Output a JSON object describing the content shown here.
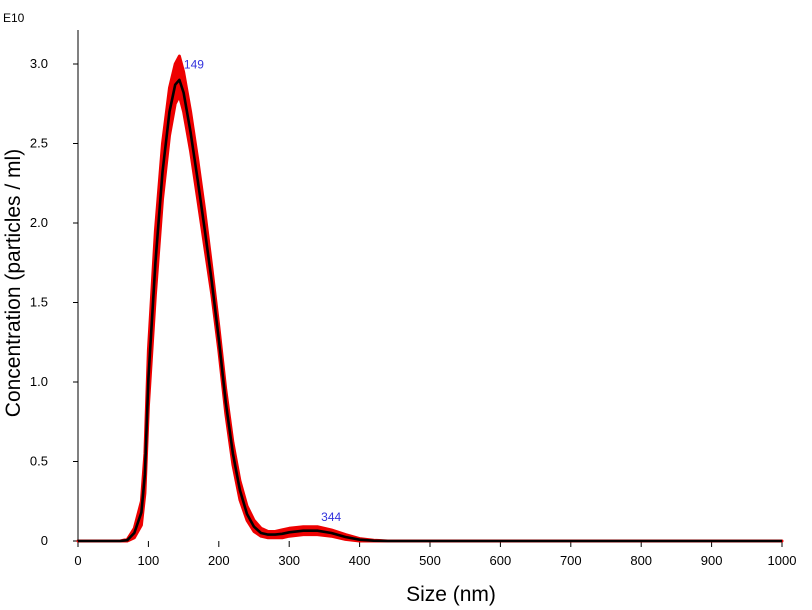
{
  "chart_data": {
    "type": "line",
    "title": "",
    "xlabel": "Size (nm)",
    "ylabel": "Concentration (particles / ml)",
    "y_exponent_label": "E10",
    "xlim": [
      0,
      1000
    ],
    "ylim": [
      0,
      3.0
    ],
    "x_ticks": [
      0,
      100,
      200,
      300,
      400,
      500,
      600,
      700,
      800,
      900,
      1000
    ],
    "x_tick_labels": [
      "0",
      "100",
      "200",
      "300",
      "400",
      "500",
      "600",
      "700",
      "800",
      "900",
      "1000"
    ],
    "y_ticks": [
      0,
      0.5,
      1.0,
      1.5,
      2.0,
      2.5,
      3.0
    ],
    "y_tick_labels": [
      "0",
      "0.5",
      "1.0",
      "1.5",
      "2.0",
      "2.5",
      "3.0"
    ],
    "grid": false,
    "legend": "none",
    "series": [
      {
        "color": "#ee0000",
        "style": "error-band",
        "x": [
          0,
          60,
          70,
          80,
          90,
          95,
          100,
          110,
          120,
          130,
          138,
          144,
          150,
          160,
          170,
          180,
          190,
          200,
          210,
          220,
          230,
          240,
          250,
          260,
          270,
          280,
          290,
          300,
          320,
          340,
          360,
          380,
          400,
          420,
          440,
          460,
          480,
          500,
          600,
          700,
          800,
          900,
          1000
        ],
        "lower": [
          0,
          0,
          0,
          0.02,
          0.1,
          0.3,
          0.85,
          1.55,
          2.15,
          2.55,
          2.75,
          2.8,
          2.7,
          2.45,
          2.15,
          1.85,
          1.55,
          1.2,
          0.8,
          0.48,
          0.26,
          0.13,
          0.06,
          0.03,
          0.02,
          0.02,
          0.02,
          0.03,
          0.04,
          0.04,
          0.03,
          0.01,
          0,
          0,
          0,
          0,
          0,
          0,
          0,
          0,
          0,
          0,
          0
        ],
        "upper": [
          0,
          0,
          0.01,
          0.08,
          0.25,
          0.55,
          1.2,
          1.95,
          2.5,
          2.85,
          3.0,
          3.05,
          2.95,
          2.7,
          2.4,
          2.08,
          1.72,
          1.35,
          0.95,
          0.62,
          0.38,
          0.22,
          0.13,
          0.08,
          0.06,
          0.06,
          0.07,
          0.08,
          0.09,
          0.09,
          0.07,
          0.04,
          0.015,
          0.005,
          0,
          0,
          0,
          0,
          0,
          0,
          0,
          0,
          0
        ]
      },
      {
        "color": "#000000",
        "style": "line",
        "x": [
          0,
          60,
          70,
          80,
          90,
          95,
          100,
          110,
          120,
          130,
          138,
          144,
          150,
          160,
          170,
          180,
          190,
          200,
          210,
          220,
          230,
          240,
          250,
          260,
          270,
          280,
          290,
          300,
          320,
          340,
          360,
          380,
          400,
          420,
          440,
          460,
          480,
          500,
          600,
          700,
          800,
          900,
          1000
        ],
        "values": [
          0,
          0,
          0.005,
          0.05,
          0.18,
          0.42,
          1.02,
          1.75,
          2.32,
          2.7,
          2.87,
          2.9,
          2.82,
          2.57,
          2.27,
          1.96,
          1.63,
          1.27,
          0.87,
          0.55,
          0.32,
          0.17,
          0.09,
          0.05,
          0.04,
          0.04,
          0.045,
          0.055,
          0.065,
          0.065,
          0.05,
          0.025,
          0.008,
          0.002,
          0,
          0,
          0,
          0,
          0,
          0,
          0,
          0,
          0
        ]
      }
    ],
    "annotations": [
      {
        "text": "149",
        "x": 149,
        "y": 2.92
      },
      {
        "text": "344",
        "x": 344,
        "y": 0.075
      }
    ]
  }
}
